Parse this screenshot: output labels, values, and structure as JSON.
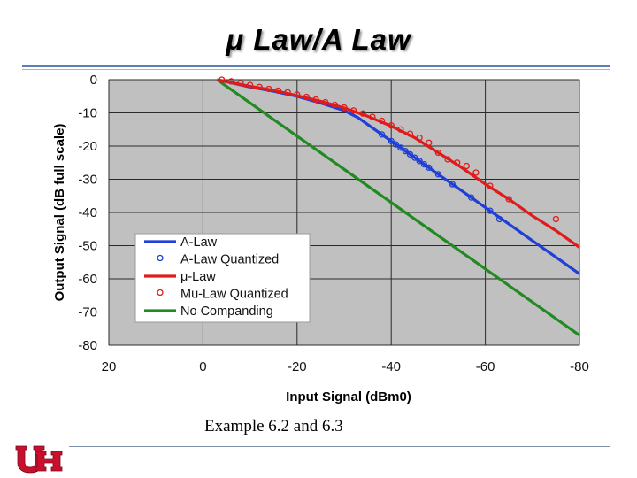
{
  "slide": {
    "title": "μ Law/A Law",
    "caption": "Example 6.2 and 6.3"
  },
  "colors": {
    "a_law": "#1f3fd6",
    "mu_law": "#e01b1b",
    "no_companding": "#218a21",
    "plot_bg": "#c0c0c0",
    "accent_rule": "#5b7fb4",
    "logo_red": "#c8102e"
  },
  "icons": {
    "logo": "uh-interlocking-logo"
  },
  "chart_data": {
    "type": "line",
    "xlabel": "Input Signal (dBm0)",
    "ylabel": "Output Signal (dB full scale)",
    "xlim": [
      20,
      -80
    ],
    "ylim": [
      -80,
      0
    ],
    "x_reversed": true,
    "xticks": [
      "20",
      "0",
      "-20",
      "-40",
      "-60",
      "-80"
    ],
    "yticks": [
      "0",
      "-10",
      "-20",
      "-30",
      "-40",
      "-50",
      "-60",
      "-70",
      "-80"
    ],
    "grid": true,
    "legend_position": "bottom-left",
    "series": [
      {
        "name": "A-Law",
        "kind": "line",
        "color": "#1f3fd6",
        "x": [
          -3,
          -10,
          -15,
          -20,
          -25,
          -30,
          -33,
          -36,
          -38,
          -40,
          -45,
          -50,
          -55,
          -60,
          -65,
          -70,
          -75,
          -80
        ],
        "y": [
          0,
          -2.2,
          -3.5,
          -5.0,
          -7.0,
          -9.3,
          -11.5,
          -14.5,
          -16.5,
          -18.5,
          -23.5,
          -28.5,
          -33.5,
          -38.5,
          -43.5,
          -48.5,
          -53.5,
          -58.5
        ]
      },
      {
        "name": "A-Law Quantized",
        "kind": "scatter",
        "color": "#1f3fd6",
        "x": [
          -38,
          -40,
          -41,
          -42,
          -43,
          -44,
          -45,
          -46,
          -47,
          -48,
          -50,
          -53,
          -57,
          -61,
          -63
        ],
        "y": [
          -16.5,
          -18.5,
          -19.5,
          -20.5,
          -21.5,
          -22.5,
          -23.5,
          -24.5,
          -25.5,
          -26.5,
          -28.5,
          -31.5,
          -35.5,
          -39.5,
          -42
        ]
      },
      {
        "name": "μ-Law",
        "kind": "line",
        "color": "#e01b1b",
        "x": [
          -3,
          -10,
          -15,
          -20,
          -25,
          -30,
          -35,
          -40,
          -45,
          -50,
          -55,
          -60,
          -65,
          -70,
          -75,
          -80
        ],
        "y": [
          0,
          -2.0,
          -3.2,
          -4.8,
          -6.5,
          -8.5,
          -11.0,
          -14.0,
          -17.5,
          -22.0,
          -26.5,
          -31.5,
          -36.0,
          -41.0,
          -45.5,
          -50.5
        ]
      },
      {
        "name": "Mu-Law Quantized",
        "kind": "scatter",
        "color": "#e01b1b",
        "x": [
          -4,
          -6,
          -8,
          -10,
          -12,
          -14,
          -16,
          -18,
          -20,
          -22,
          -24,
          -26,
          -28,
          -30,
          -32,
          -34,
          -36,
          -38,
          -40,
          -42,
          -44,
          -46,
          -48,
          -50,
          -52,
          -54,
          -56,
          -58,
          -61,
          -65,
          -75
        ],
        "y": [
          0,
          -0.5,
          -1.0,
          -1.6,
          -2.2,
          -2.8,
          -3.3,
          -3.8,
          -4.5,
          -5.2,
          -6.0,
          -6.8,
          -7.6,
          -8.4,
          -9.3,
          -10.2,
          -11.2,
          -12.4,
          -13.8,
          -15.0,
          -16.3,
          -17.5,
          -19.0,
          -22.0,
          -24.0,
          -25.0,
          -26.0,
          -28.0,
          -32.0,
          -36.0,
          -42.0
        ]
      },
      {
        "name": "No Companding",
        "kind": "line",
        "color": "#218a21",
        "x": [
          -3,
          -80
        ],
        "y": [
          0,
          -77
        ]
      }
    ]
  }
}
